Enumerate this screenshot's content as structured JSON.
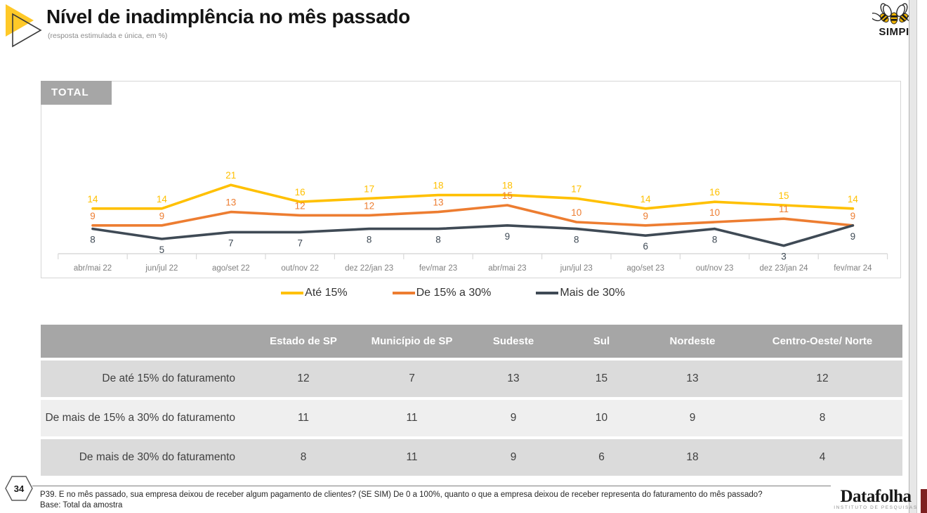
{
  "header": {
    "title": "Nível de inadimplência no mês passado",
    "subtitle": "(resposta estimulada e única, em %)",
    "org_logo_text": "SIMPI"
  },
  "chart_panel": {
    "tag": "TOTAL"
  },
  "chart_data": {
    "type": "line",
    "title": "TOTAL",
    "categories": [
      "abr/mai 22",
      "jun/jul 22",
      "ago/set 22",
      "out/nov 22",
      "dez 22/jan 23",
      "fev/mar 23",
      "abr/mai 23",
      "jun/jul 23",
      "ago/set 23",
      "out/nov 23",
      "dez 23/jan 24",
      "fev/mar 24"
    ],
    "series": [
      {
        "name": "Até 15%",
        "color": "#FFC000",
        "values": [
          14,
          14,
          21,
          16,
          17,
          18,
          18,
          17,
          14,
          16,
          15,
          14
        ]
      },
      {
        "name": "De 15% a 30%",
        "color": "#ED7D31",
        "values": [
          9,
          9,
          13,
          12,
          12,
          13,
          15,
          10,
          9,
          10,
          11,
          9
        ]
      },
      {
        "name": "Mais de 30%",
        "color": "#3F4A55",
        "values": [
          8,
          5,
          7,
          7,
          8,
          8,
          9,
          8,
          6,
          8,
          3,
          9
        ]
      }
    ],
    "ylim": [
      0,
      26
    ],
    "grid": false,
    "legend_position": "bottom",
    "data_labels": true,
    "unit": "%"
  },
  "table": {
    "columns": [
      "Estado de SP",
      "Município de SP",
      "Sudeste",
      "Sul",
      "Nordeste",
      "Centro-Oeste/ Norte"
    ],
    "rows": [
      {
        "label": "De até 15% do faturamento",
        "values": [
          12,
          7,
          13,
          15,
          13,
          12
        ]
      },
      {
        "label": "De mais de 15% a 30% do faturamento",
        "values": [
          11,
          11,
          9,
          10,
          9,
          8
        ]
      },
      {
        "label": "De mais de 30% do faturamento",
        "values": [
          8,
          11,
          9,
          6,
          18,
          4
        ]
      }
    ]
  },
  "footer": {
    "page_number": "34",
    "question": "P39. E no mês passado, sua empresa deixou de receber algum pagamento de clientes? (SE SIM) De 0 a 100%, quanto o que a empresa deixou de receber representa do faturamento do mês passado?",
    "base": "Base: Total da amostra",
    "brand": "Datafolha",
    "brand_sub": "INSTITUTO DE PESQUISAS"
  },
  "colors": {
    "accent_yellow": "#FFC000",
    "accent_orange": "#ED7D31",
    "accent_dark": "#3F4A55",
    "table_header_bg": "#a6a6a6",
    "row_odd_bg": "#dbdbdb",
    "row_even_bg": "#efefef",
    "axis_gray": "#d9d9d9",
    "axis_label_gray": "#808080"
  }
}
